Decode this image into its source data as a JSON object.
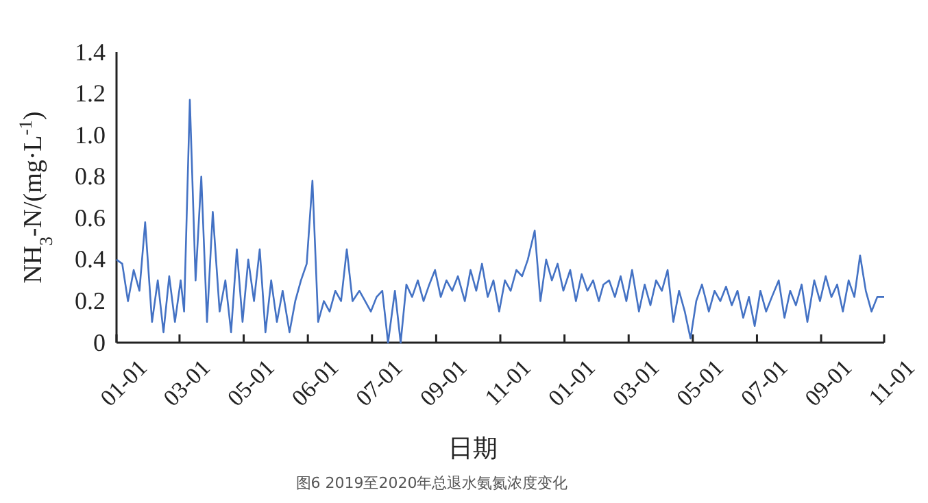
{
  "chart_data": {
    "type": "line",
    "xlabel": "日期",
    "ylabel": "NH$_{3}$-N/(mg·L$^{-1}$)",
    "annotations": [
      "图6 2019至2020年总退水氨氮浓度变化"
    ],
    "x": [
      "2019-01-01",
      "2019-01-06",
      "2019-01-11",
      "2019-01-16",
      "2019-01-21",
      "2019-01-26",
      "2019-02-01",
      "2019-02-06",
      "2019-02-11",
      "2019-02-16",
      "2019-02-21",
      "2019-02-26",
      "2019-03-01",
      "2019-03-06",
      "2019-03-11",
      "2019-03-16",
      "2019-03-21",
      "2019-03-26",
      "2019-04-01",
      "2019-04-06",
      "2019-04-11",
      "2019-04-16",
      "2019-04-21",
      "2019-04-26",
      "2019-05-01",
      "2019-05-06",
      "2019-05-11",
      "2019-05-16",
      "2019-05-21",
      "2019-05-26",
      "2019-06-01",
      "2019-06-06",
      "2019-06-11",
      "2019-06-16",
      "2019-06-21",
      "2019-06-26",
      "2019-07-01",
      "2019-07-06",
      "2019-07-11",
      "2019-07-16",
      "2019-07-21",
      "2019-07-26",
      "2019-08-01",
      "2019-08-06",
      "2019-08-11",
      "2019-08-16",
      "2019-08-21",
      "2019-08-26",
      "2019-09-01",
      "2019-09-06",
      "2019-09-11",
      "2019-09-16",
      "2019-09-21",
      "2019-09-26",
      "2019-10-01",
      "2019-10-06",
      "2019-10-11",
      "2019-10-16",
      "2019-10-21",
      "2019-10-26",
      "2019-11-01",
      "2019-11-06",
      "2019-11-11",
      "2019-11-16",
      "2019-11-21",
      "2019-11-26",
      "2019-12-01",
      "2019-12-06",
      "2019-12-11",
      "2019-12-16",
      "2019-12-21",
      "2019-12-26",
      "2020-01-01",
      "2020-01-06",
      "2020-01-11",
      "2020-01-16",
      "2020-01-21",
      "2020-01-26",
      "2020-02-01",
      "2020-02-06",
      "2020-02-11",
      "2020-02-16",
      "2020-02-21",
      "2020-02-26",
      "2020-03-01",
      "2020-03-06",
      "2020-03-11",
      "2020-03-16",
      "2020-03-21",
      "2020-03-26",
      "2020-04-01",
      "2020-04-06",
      "2020-04-11",
      "2020-04-16",
      "2020-04-21",
      "2020-04-26",
      "2020-05-01",
      "2020-05-06",
      "2020-05-11",
      "2020-05-16",
      "2020-05-21",
      "2020-05-26",
      "2020-06-01",
      "2020-06-06",
      "2020-06-11",
      "2020-06-16",
      "2020-06-21",
      "2020-06-26",
      "2020-07-01",
      "2020-07-06",
      "2020-07-11",
      "2020-07-16",
      "2020-07-21",
      "2020-07-26",
      "2020-08-01",
      "2020-08-06",
      "2020-08-11",
      "2020-08-16",
      "2020-08-21",
      "2020-08-26",
      "2020-09-01",
      "2020-09-06",
      "2020-09-11",
      "2020-09-16",
      "2020-09-21",
      "2020-09-26",
      "2020-10-01",
      "2020-10-06",
      "2020-10-11",
      "2020-10-16",
      "2020-10-21",
      "2020-10-26",
      "2020-11-01"
    ],
    "series": [
      {
        "color": "#4472c4",
        "values": [
          0.4,
          0.38,
          0.2,
          0.35,
          0.25,
          0.58,
          0.1,
          0.3,
          0.05,
          0.32,
          0.1,
          0.3,
          0.15,
          1.17,
          0.3,
          0.8,
          0.1,
          0.63,
          0.15,
          0.3,
          0.05,
          0.45,
          0.1,
          0.4,
          0.2,
          0.45,
          0.05,
          0.3,
          0.1,
          0.25,
          0.05,
          0.2,
          0.3,
          0.38,
          0.78,
          0.1,
          0.2,
          0.15,
          0.25,
          0.2,
          0.45,
          0.2,
          0.25,
          0.2,
          0.15,
          0.22,
          0.25,
          0.0,
          0.25,
          0.0,
          0.28,
          0.22,
          0.3,
          0.2,
          0.28,
          0.35,
          0.22,
          0.3,
          0.25,
          0.32,
          0.2,
          0.35,
          0.25,
          0.38,
          0.22,
          0.3,
          0.15,
          0.3,
          0.25,
          0.35,
          0.32,
          0.4,
          0.54,
          0.2,
          0.4,
          0.3,
          0.38,
          0.25,
          0.35,
          0.2,
          0.33,
          0.25,
          0.3,
          0.2,
          0.28,
          0.3,
          0.22,
          0.32,
          0.2,
          0.35,
          0.15,
          0.28,
          0.18,
          0.3,
          0.25,
          0.35,
          0.1,
          0.25,
          0.15,
          0.02,
          0.2,
          0.28,
          0.15,
          0.25,
          0.2,
          0.27,
          0.18,
          0.25,
          0.12,
          0.22,
          0.08,
          0.25,
          0.15,
          0.22,
          0.3,
          0.12,
          0.25,
          0.18,
          0.28,
          0.1,
          0.3,
          0.2,
          0.32,
          0.22,
          0.28,
          0.15,
          0.3,
          0.22,
          0.42,
          0.25,
          0.15,
          0.22,
          0.22
        ]
      }
    ],
    "xlim": [
      "2019-01-01",
      "2020-11-01"
    ],
    "xticks": [
      {
        "value": "2019-01-01",
        "label": "01-01"
      },
      {
        "value": "2019-02-25",
        "label": "03-01"
      },
      {
        "value": "2019-04-22",
        "label": "05-01"
      },
      {
        "value": "2019-06-17",
        "label": "06-01"
      },
      {
        "value": "2019-08-12",
        "label": "07-01"
      },
      {
        "value": "2019-10-07",
        "label": "09-01"
      },
      {
        "value": "2019-12-02",
        "label": "11-01"
      },
      {
        "value": "2020-01-27",
        "label": "01-01"
      },
      {
        "value": "2020-03-23",
        "label": "03-01"
      },
      {
        "value": "2020-05-18",
        "label": "05-01"
      },
      {
        "value": "2020-07-13",
        "label": "07-01"
      },
      {
        "value": "2020-09-07",
        "label": "09-01"
      },
      {
        "value": "2020-11-01",
        "label": "11-01"
      }
    ],
    "ylim": [
      0,
      1.4
    ],
    "yticks": [
      0,
      {
        "value": 0.2,
        "label": "0.2"
      },
      {
        "value": 0.4,
        "label": "0.4"
      },
      {
        "value": 0.6,
        "label": "0.6"
      },
      {
        "value": 0.8,
        "label": "0.8"
      },
      {
        "value": 1.0,
        "label": "1.0"
      },
      {
        "value": 1.2,
        "label": "1.2"
      },
      {
        "value": 1.4,
        "label": "1.4"
      }
    ],
    "grid": false
  }
}
